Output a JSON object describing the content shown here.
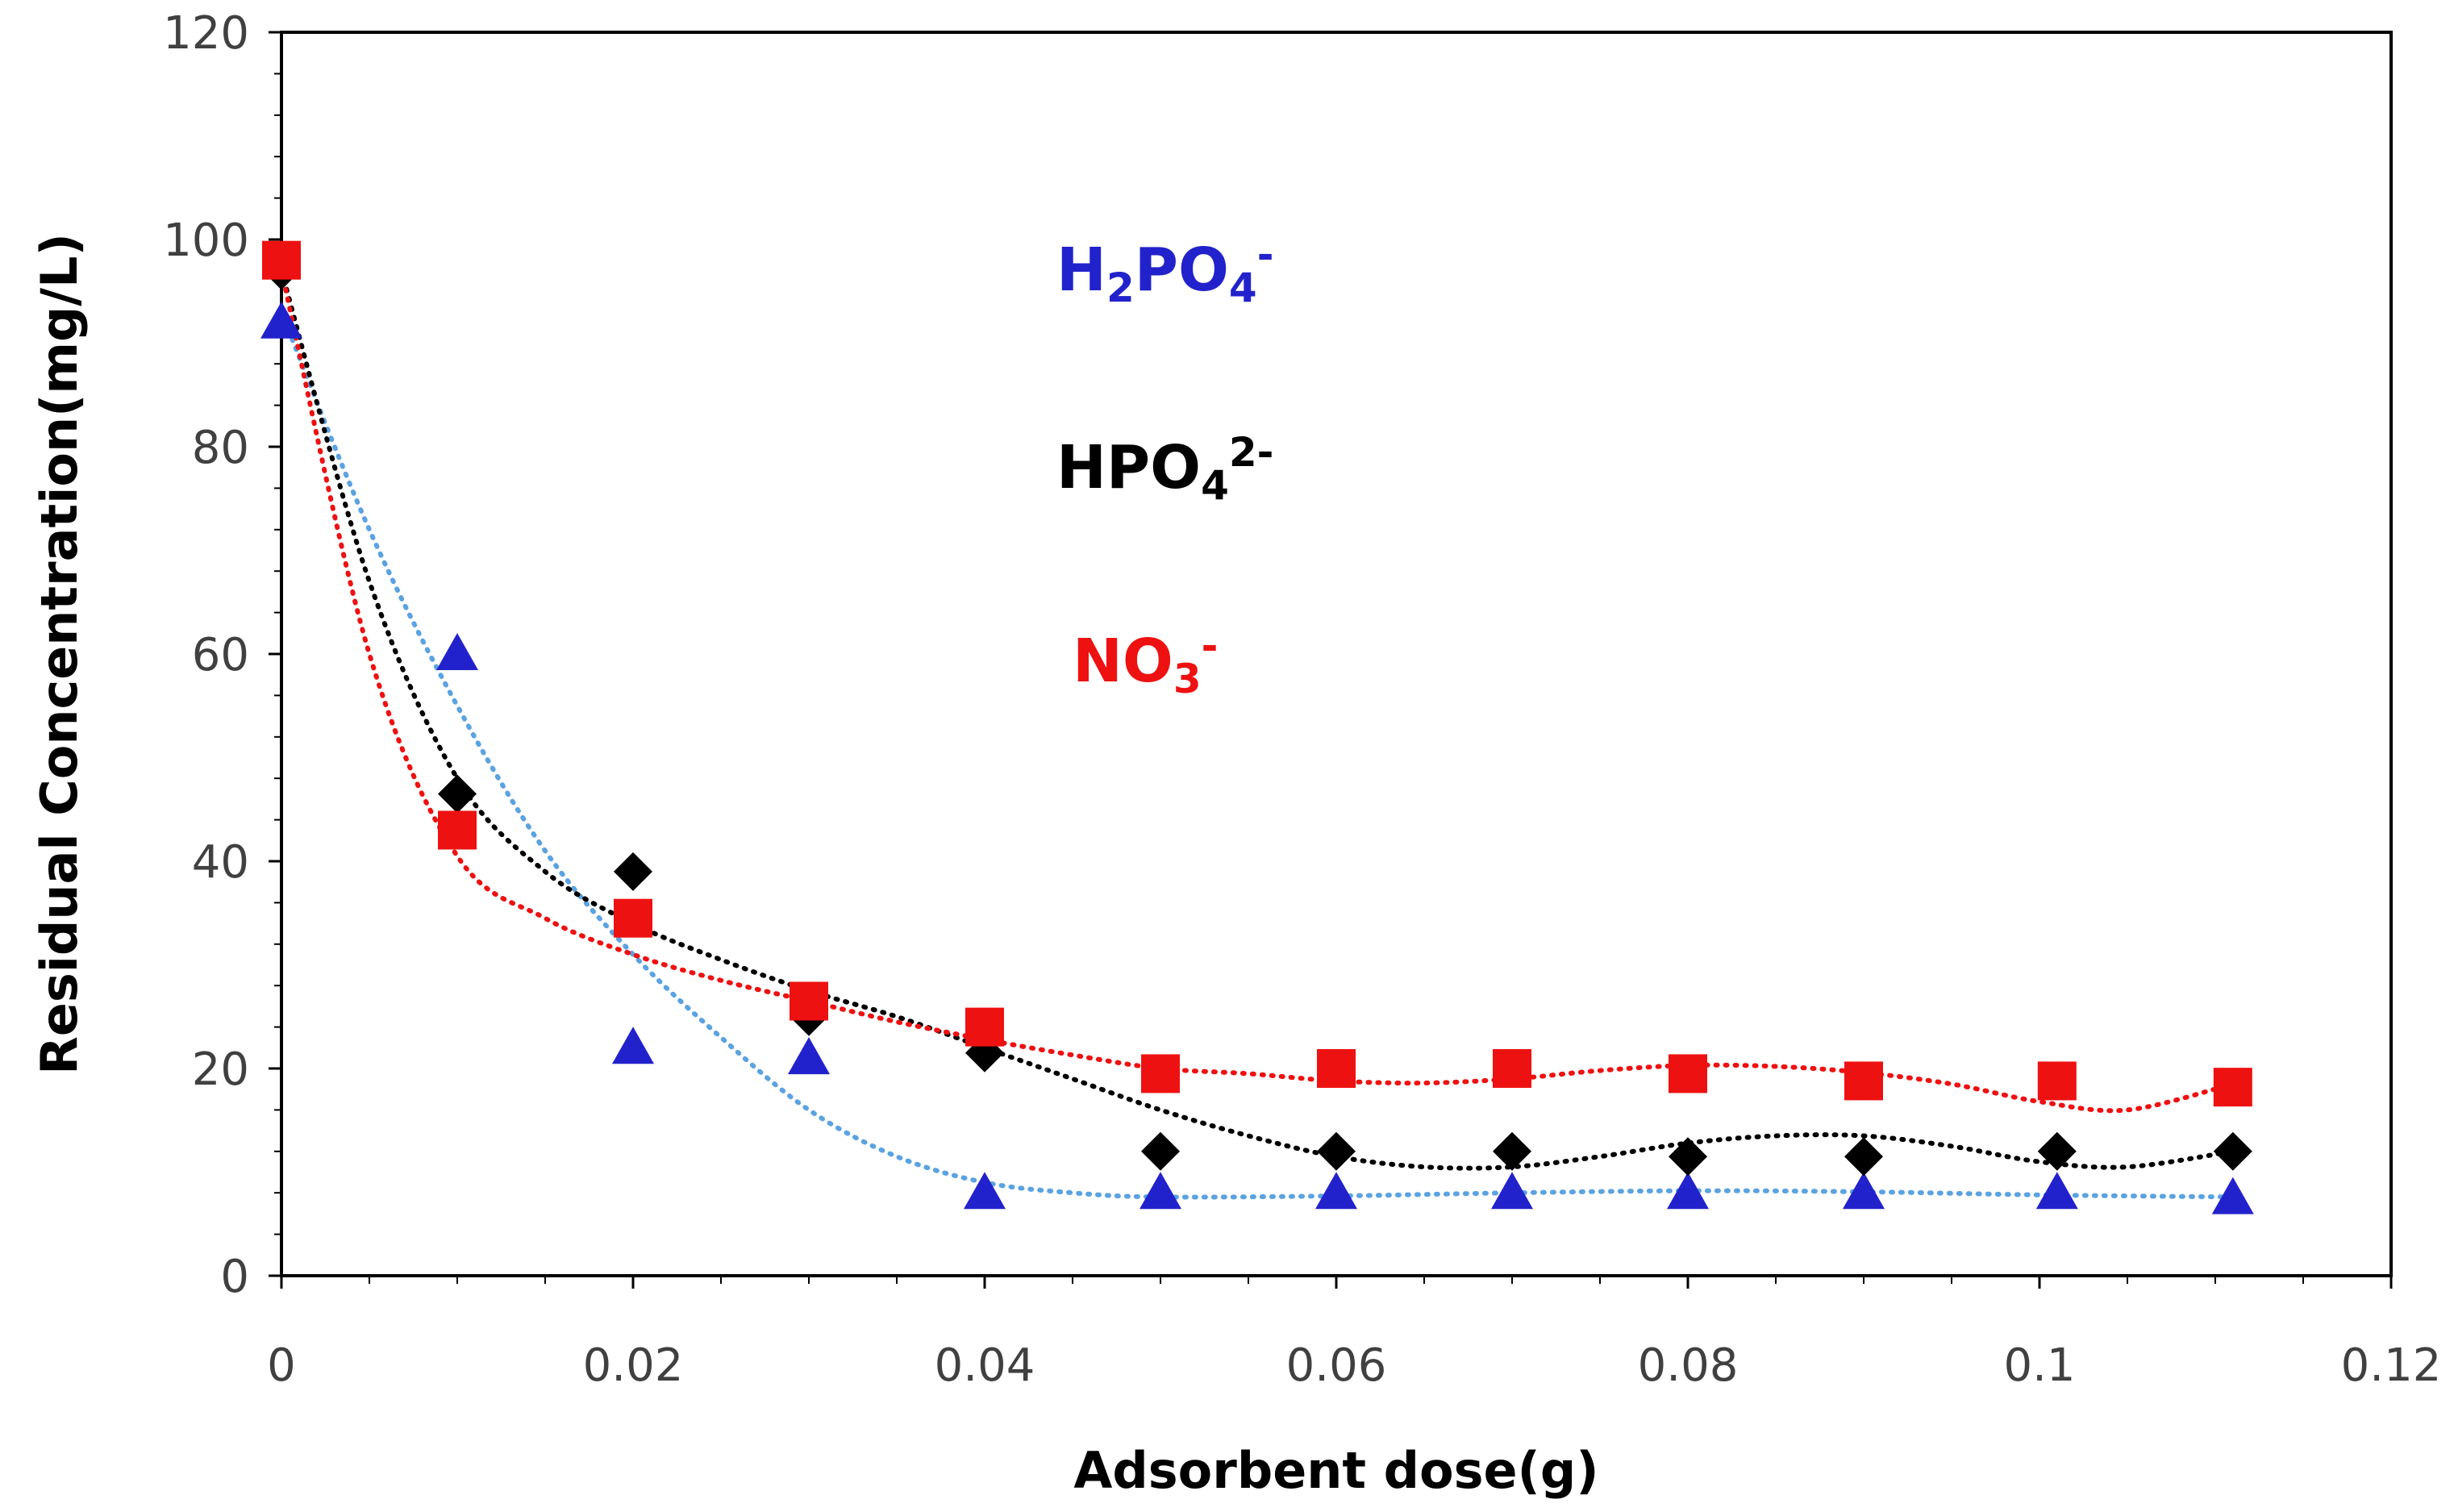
{
  "chart_data": {
    "type": "scatter",
    "title": "",
    "xlabel": "Adsorbent dose(g)",
    "ylabel": "Residual Concentration(mg/L)",
    "xlim": [
      0,
      0.12
    ],
    "ylim": [
      0,
      120
    ],
    "xticks": [
      0,
      0.02,
      0.04,
      0.06,
      0.08,
      0.1,
      0.12
    ],
    "xtick_labels": [
      "0",
      "0.02",
      "0.04",
      "0.06",
      "0.08",
      "0.1",
      "0.12"
    ],
    "yticks": [
      0,
      20,
      40,
      60,
      80,
      100,
      120
    ],
    "ytick_labels": [
      "0",
      "20",
      "40",
      "60",
      "80",
      "100",
      "120"
    ],
    "grid": false,
    "trendline": "dotted polynomial",
    "series": [
      {
        "name": "H2PO4-",
        "label_main": "H",
        "label_parts": [
          {
            "text": "H",
            "pos": "base"
          },
          {
            "text": "2",
            "pos": "sub"
          },
          {
            "text": "PO",
            "pos": "base"
          },
          {
            "text": "4",
            "pos": "sub"
          },
          {
            "text": "-",
            "pos": "sup"
          }
        ],
        "marker": "triangle",
        "color": "#2222cc",
        "trend_color": "#5ba3e0",
        "x": [
          0,
          0.01,
          0.02,
          0.03,
          0.04,
          0.05,
          0.06,
          0.07,
          0.08,
          0.09,
          0.101,
          0.111
        ],
        "y": [
          92,
          60,
          22,
          21,
          8,
          8,
          8,
          8,
          8,
          8,
          8,
          7.5
        ],
        "trend_x": [
          0,
          0.005,
          0.01,
          0.015,
          0.02,
          0.025,
          0.03,
          0.035,
          0.04,
          0.045,
          0.05,
          0.06,
          0.07,
          0.08,
          0.09,
          0.1,
          0.111
        ],
        "trend_y": [
          93,
          72,
          55,
          41,
          31,
          23,
          16,
          11.5,
          9,
          8,
          7.6,
          7.7,
          8,
          8.2,
          8.1,
          7.8,
          7.6
        ]
      },
      {
        "name": "HPO42-",
        "label_parts": [
          {
            "text": "HPO",
            "pos": "base"
          },
          {
            "text": "4",
            "pos": "sub"
          },
          {
            "text": "2-",
            "pos": "sup"
          }
        ],
        "marker": "diamond",
        "color": "#000000",
        "trend_color": "#000000",
        "x": [
          0,
          0.01,
          0.02,
          0.03,
          0.04,
          0.05,
          0.06,
          0.07,
          0.08,
          0.09,
          0.101,
          0.111
        ],
        "y": [
          97,
          46.5,
          39,
          25,
          21.5,
          12,
          12,
          12,
          11.5,
          11.5,
          12,
          12
        ],
        "trend_x": [
          0,
          0.005,
          0.01,
          0.015,
          0.02,
          0.025,
          0.03,
          0.035,
          0.04,
          0.045,
          0.05,
          0.055,
          0.06,
          0.065,
          0.07,
          0.075,
          0.08,
          0.085,
          0.09,
          0.095,
          0.1,
          0.105,
          0.111
        ],
        "trend_y": [
          97,
          67,
          48,
          39,
          34,
          30.5,
          27.5,
          25,
          22,
          19,
          16,
          13.5,
          11.5,
          10.5,
          10.5,
          11.5,
          12.8,
          13.5,
          13.5,
          12.5,
          11,
          10.5,
          12
        ]
      },
      {
        "name": "NO3-",
        "label_parts": [
          {
            "text": "NO",
            "pos": "base"
          },
          {
            "text": "3",
            "pos": "sub"
          },
          {
            "text": "-",
            "pos": "sup"
          }
        ],
        "marker": "square",
        "color": "#ee1111",
        "trend_color": "#ee1111",
        "x": [
          0,
          0.01,
          0.02,
          0.03,
          0.04,
          0.05,
          0.06,
          0.07,
          0.08,
          0.09,
          0.101,
          0.111
        ],
        "y": [
          98,
          43,
          34.5,
          26.5,
          24,
          19.5,
          20,
          20,
          19.5,
          18.8,
          18.8,
          18.2
        ],
        "trend_x": [
          0,
          0.005,
          0.01,
          0.015,
          0.02,
          0.025,
          0.03,
          0.035,
          0.04,
          0.045,
          0.05,
          0.055,
          0.06,
          0.065,
          0.07,
          0.075,
          0.08,
          0.085,
          0.09,
          0.095,
          0.1,
          0.105,
          0.111
        ],
        "trend_y": [
          97,
          60,
          40.5,
          34.5,
          31,
          28.5,
          26.5,
          24.5,
          22.8,
          21.3,
          20,
          19.5,
          18.8,
          18.6,
          19,
          19.8,
          20.3,
          20.2,
          19.6,
          18.5,
          16.8,
          16,
          18.5
        ]
      }
    ]
  }
}
